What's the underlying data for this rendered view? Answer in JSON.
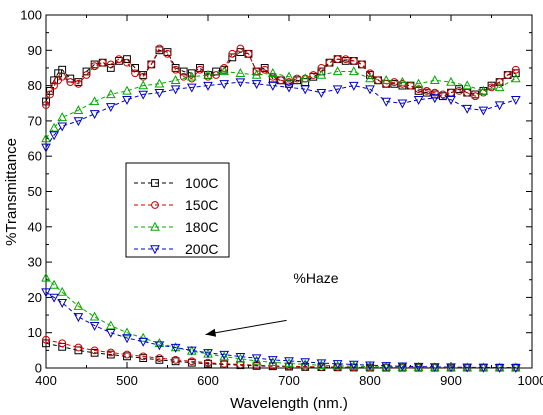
{
  "chart_data": {
    "type": "line",
    "xlabel": "Wavelength (nm.)",
    "ylabel": "%Transmittance",
    "xlim": [
      400,
      1000
    ],
    "ylim": [
      0,
      100
    ],
    "xticks": [
      400,
      500,
      600,
      700,
      800,
      900,
      1000
    ],
    "yticks": [
      0,
      10,
      20,
      30,
      40,
      50,
      60,
      70,
      80,
      90,
      100
    ],
    "legend_position": "center-left",
    "annotation": {
      "text": "%Haze",
      "arrow_from": [
        697,
        13.5
      ],
      "arrow_to": [
        597,
        9.5
      ]
    },
    "series": [
      {
        "name": "100C",
        "color": "#000000",
        "marker": "square",
        "transmittance": {
          "x": [
            400,
            405,
            410,
            415,
            420,
            430,
            440,
            450,
            460,
            470,
            480,
            490,
            500,
            510,
            520,
            530,
            540,
            550,
            560,
            570,
            580,
            590,
            600,
            610,
            620,
            630,
            640,
            650,
            660,
            670,
            680,
            690,
            700,
            710,
            720,
            730,
            740,
            750,
            760,
            770,
            780,
            790,
            800,
            810,
            820,
            830,
            840,
            850,
            860,
            870,
            880,
            890,
            900,
            910,
            920,
            930,
            940,
            950,
            960,
            970,
            980
          ],
          "y": [
            75.5,
            78.5,
            81.5,
            83.5,
            84.5,
            82,
            81,
            84,
            86,
            86.5,
            85,
            87,
            87.5,
            85,
            83,
            86,
            90,
            89.5,
            85,
            84,
            83.5,
            85,
            83,
            84,
            84.5,
            88,
            89.5,
            89,
            84,
            85,
            82,
            81.5,
            80.5,
            81.5,
            81,
            82.5,
            84,
            86.5,
            87.5,
            87,
            87,
            86,
            83,
            81.5,
            80.5,
            80.5,
            80,
            80,
            78.5,
            78,
            77.5,
            77,
            78,
            79,
            78,
            77.5,
            78.5,
            80,
            81,
            83,
            83.5
          ]
        },
        "haze": {
          "x": [
            400,
            420,
            440,
            460,
            480,
            500,
            520,
            540,
            560,
            580,
            600,
            620,
            640,
            660,
            680,
            700,
            720,
            740,
            760,
            780,
            800,
            820,
            840,
            860,
            880,
            900,
            920,
            940,
            960,
            980
          ],
          "y": [
            7,
            6,
            5,
            4.3,
            3.8,
            3.3,
            2.8,
            2.3,
            1.9,
            1.5,
            1.2,
            1,
            0.8,
            0.6,
            0.5,
            0.4,
            0.3,
            0.25,
            0.2,
            0.15,
            0.12,
            0.1,
            0.1,
            0.1,
            0.1,
            0.1,
            0.1,
            0.1,
            0.1,
            0.1
          ]
        }
      },
      {
        "name": "150C",
        "color": "#cc0000",
        "marker": "circle",
        "transmittance": {
          "x": [
            400,
            405,
            410,
            415,
            420,
            430,
            440,
            450,
            460,
            470,
            480,
            490,
            500,
            510,
            520,
            530,
            540,
            550,
            560,
            570,
            580,
            590,
            600,
            610,
            620,
            630,
            640,
            650,
            660,
            670,
            680,
            690,
            700,
            710,
            720,
            730,
            740,
            750,
            760,
            770,
            780,
            790,
            800,
            810,
            820,
            830,
            840,
            850,
            860,
            870,
            880,
            890,
            900,
            910,
            920,
            930,
            940,
            950,
            960,
            970,
            980
          ],
          "y": [
            74.5,
            77.5,
            80,
            81.5,
            82.5,
            81,
            80.5,
            83,
            85.5,
            86.5,
            86,
            87.5,
            86.5,
            83.5,
            82.5,
            86,
            90.5,
            89,
            84.5,
            82.5,
            82,
            84.5,
            82.5,
            83,
            85,
            89,
            90.5,
            89,
            84,
            84.5,
            82.5,
            81.5,
            81,
            82,
            82,
            83,
            85,
            86.5,
            87.5,
            87.5,
            87,
            86,
            83.5,
            81.5,
            80.5,
            81,
            80.5,
            80,
            79,
            78.5,
            78,
            77.5,
            78,
            78.5,
            78,
            77,
            78,
            79.5,
            81,
            83,
            84.5
          ]
        },
        "haze": {
          "x": [
            400,
            420,
            440,
            460,
            480,
            500,
            520,
            540,
            560,
            580,
            600,
            620,
            640,
            660,
            680,
            700,
            720,
            740,
            760,
            780,
            800,
            820,
            840,
            860,
            880,
            900,
            920,
            940,
            960,
            980
          ],
          "y": [
            8,
            7,
            5.8,
            5,
            4.4,
            3.8,
            3.3,
            2.8,
            2.3,
            1.9,
            1.5,
            1.2,
            1,
            0.8,
            0.6,
            0.5,
            0.4,
            0.3,
            0.25,
            0.2,
            0.15,
            0.1,
            0.1,
            0.1,
            0.1,
            0.1,
            0.1,
            0.1,
            0.1,
            0.1
          ]
        }
      },
      {
        "name": "180C",
        "color": "#00aa00",
        "marker": "triangle-up",
        "transmittance": {
          "x": [
            400,
            410,
            420,
            440,
            460,
            480,
            500,
            520,
            540,
            560,
            580,
            600,
            620,
            640,
            660,
            680,
            700,
            720,
            740,
            760,
            780,
            800,
            820,
            840,
            860,
            880,
            900,
            920,
            940,
            960,
            980
          ],
          "y": [
            65,
            68,
            71,
            73,
            75.5,
            77.5,
            78.5,
            80,
            80.5,
            81.5,
            82.5,
            83,
            84,
            83.5,
            83,
            83.5,
            82.5,
            82,
            83,
            84,
            84,
            82,
            81.5,
            81,
            80.5,
            81.5,
            81,
            80,
            78.5,
            79.5,
            82
          ]
        },
        "haze": {
          "x": [
            400,
            410,
            420,
            440,
            460,
            480,
            500,
            520,
            540,
            560,
            580,
            600,
            620,
            640,
            660,
            680,
            700,
            720,
            740,
            760,
            780,
            800,
            820,
            840,
            860,
            880,
            900,
            920,
            940,
            960,
            980
          ],
          "y": [
            25.5,
            23.5,
            21.5,
            17.5,
            14.5,
            12,
            10,
            8.5,
            7,
            5.8,
            4.8,
            4,
            3.2,
            2.6,
            2,
            1.6,
            1.3,
            1,
            0.8,
            0.6,
            0.5,
            0.4,
            0.3,
            0.25,
            0.2,
            0.15,
            0.1,
            0.1,
            0.1,
            0.1,
            0.1
          ]
        }
      },
      {
        "name": "200C",
        "color": "#0000cc",
        "marker": "triangle-down",
        "transmittance": {
          "x": [
            400,
            410,
            420,
            440,
            460,
            480,
            500,
            520,
            540,
            560,
            580,
            600,
            620,
            640,
            660,
            680,
            700,
            720,
            740,
            760,
            780,
            800,
            820,
            840,
            860,
            880,
            900,
            920,
            940,
            960,
            980
          ],
          "y": [
            62.5,
            66,
            68.5,
            70,
            72,
            74,
            76,
            77.5,
            78,
            79,
            79.5,
            80,
            80.5,
            81,
            80.5,
            80,
            79.5,
            79,
            78,
            79,
            80,
            79,
            75.5,
            75,
            76,
            76.5,
            76,
            73.5,
            73,
            74.5,
            76
          ]
        },
        "haze": {
          "x": [
            400,
            410,
            420,
            440,
            460,
            480,
            500,
            520,
            540,
            560,
            580,
            600,
            620,
            640,
            660,
            680,
            700,
            720,
            740,
            760,
            780,
            800,
            820,
            840,
            860,
            880,
            900,
            920,
            940,
            960,
            980
          ],
          "y": [
            21.5,
            20,
            18.5,
            14.5,
            12,
            10,
            8.5,
            7.5,
            6.5,
            5.8,
            5,
            4.3,
            3.8,
            3.2,
            2.8,
            2.3,
            2,
            1.7,
            1.4,
            1.2,
            1,
            0.8,
            0.6,
            0.5,
            0.4,
            0.3,
            0.25,
            0.2,
            0.15,
            0.1,
            0.1
          ]
        }
      }
    ]
  }
}
